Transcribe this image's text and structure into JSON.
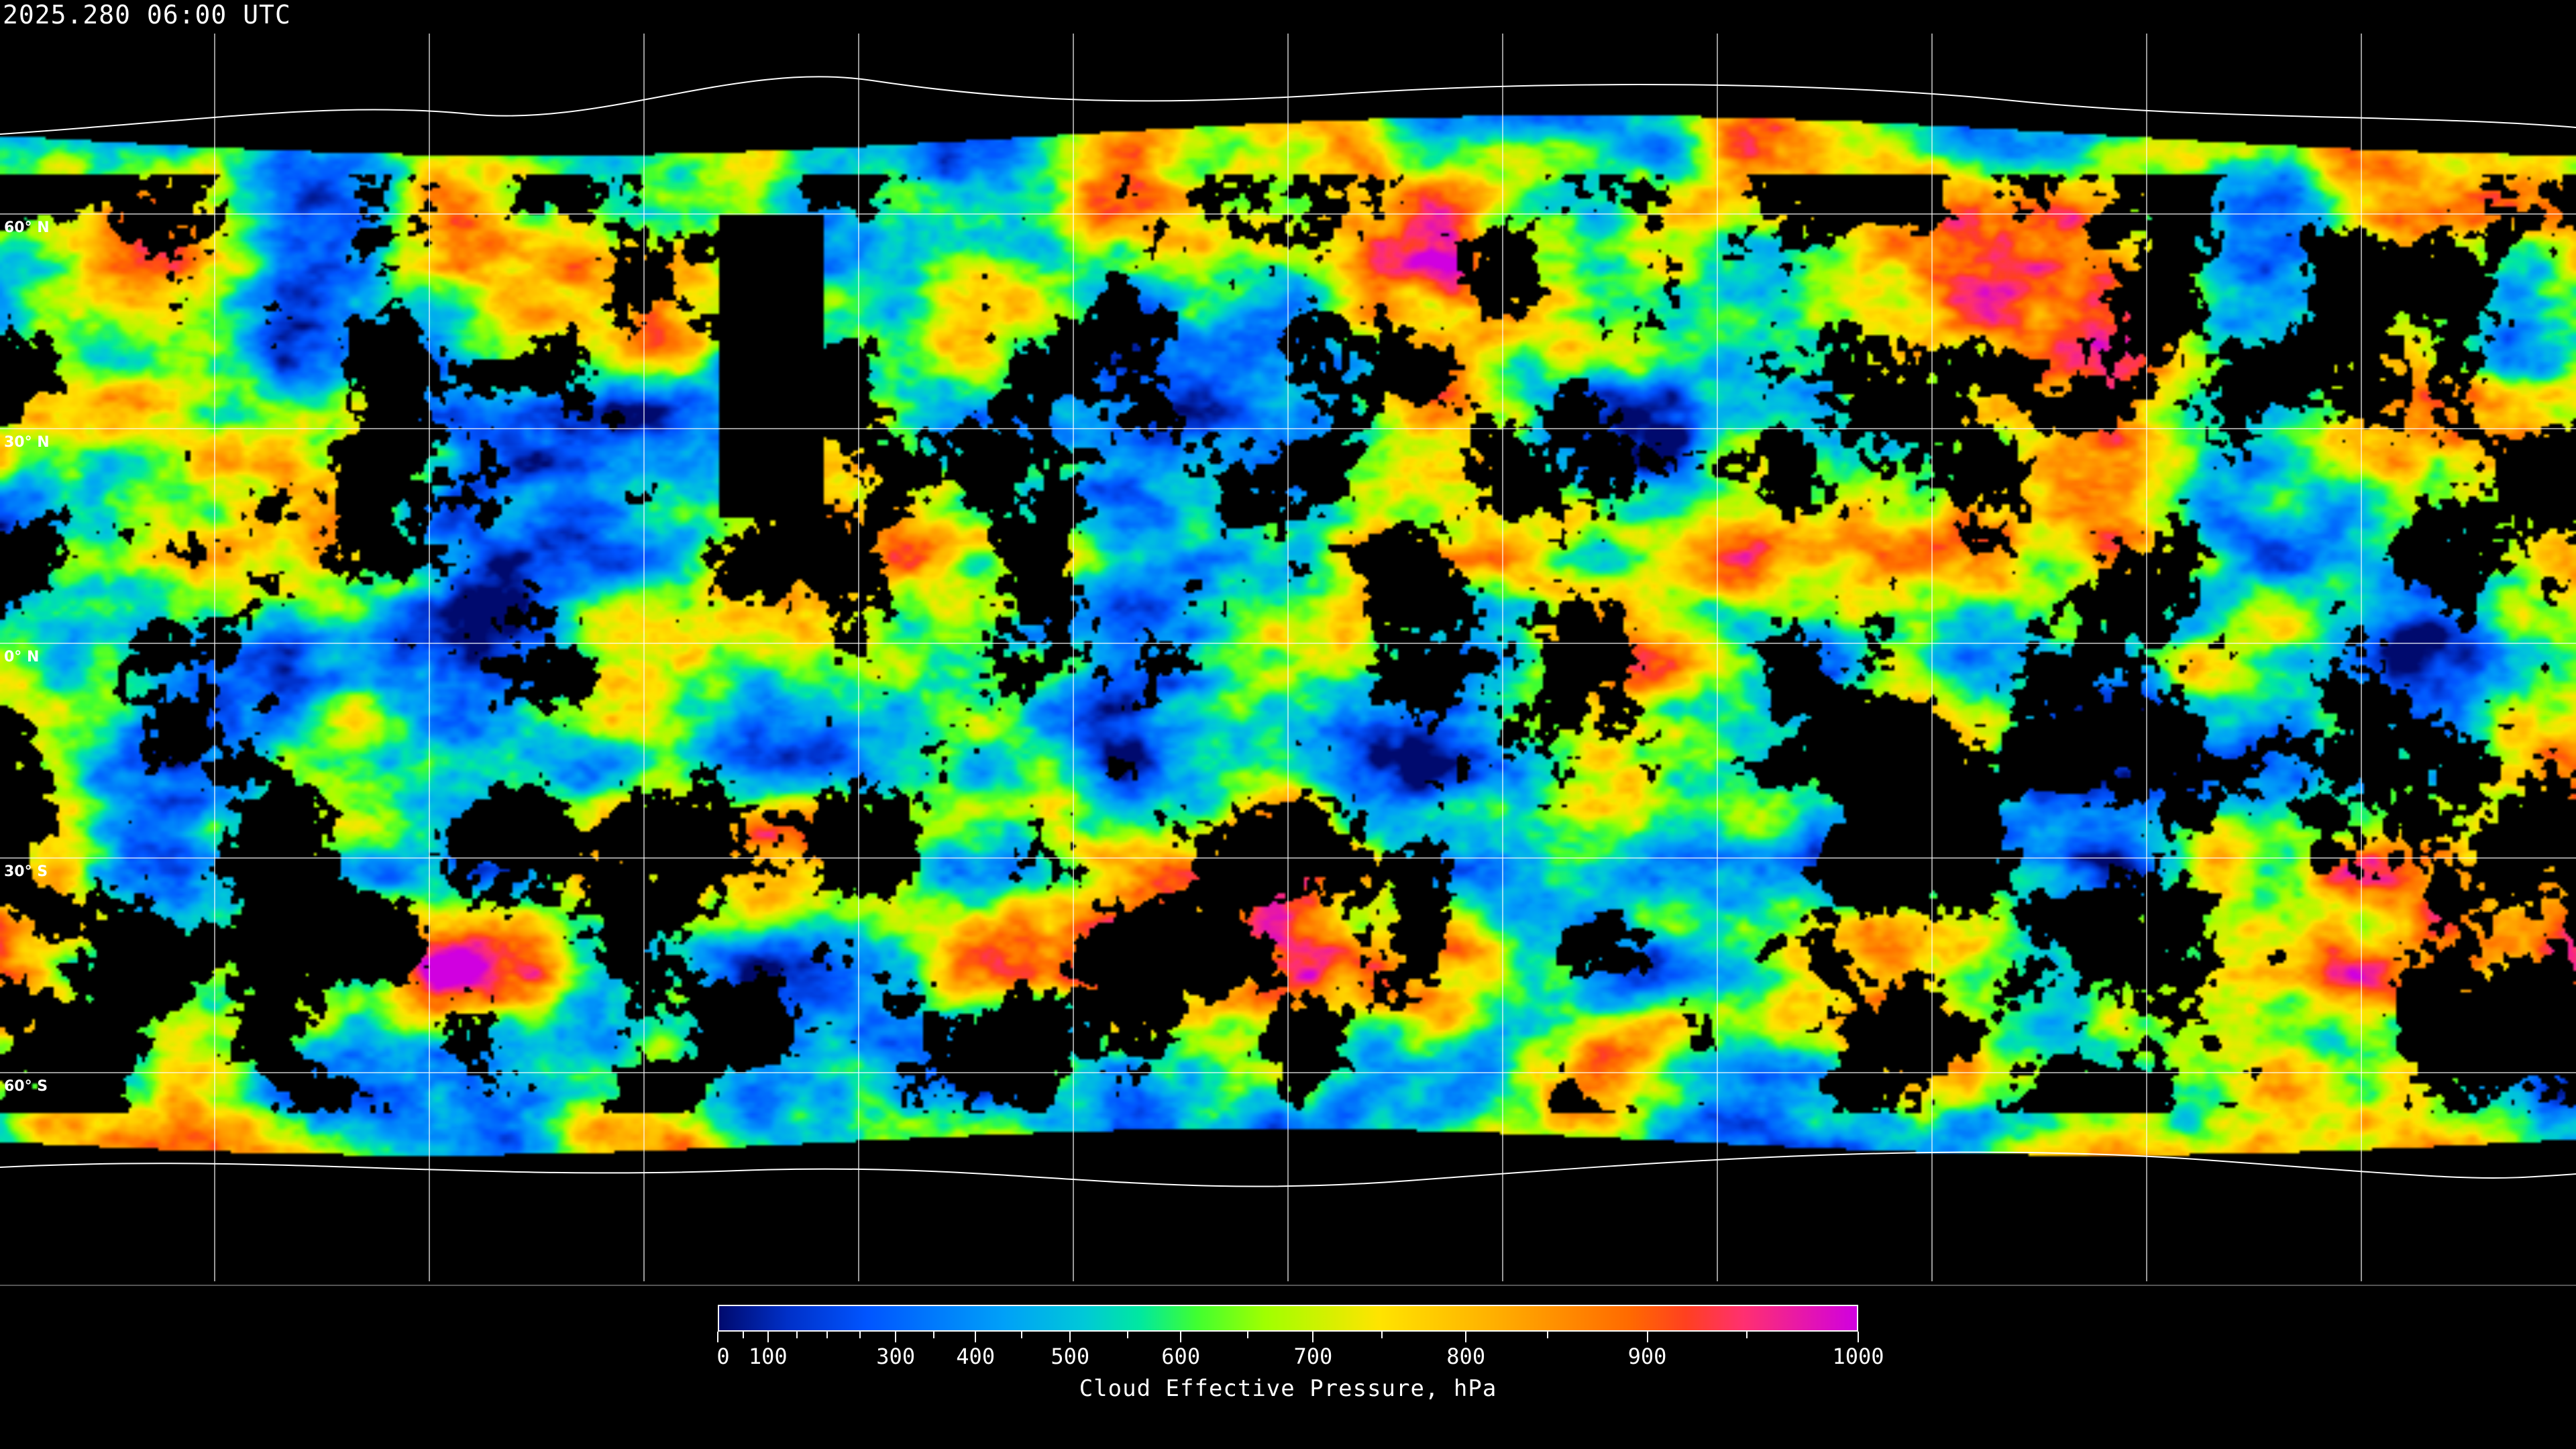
{
  "title": "2025.280 06:00 UTC",
  "latitude_labels": [
    {
      "text": "60° N",
      "lat": 60
    },
    {
      "text": "30° N",
      "lat": 30
    },
    {
      "text": "0° N",
      "lat": 0
    },
    {
      "text": "30° S",
      "lat": -30
    },
    {
      "text": "60° S",
      "lat": -60
    }
  ],
  "graticule_spacing_deg": 30,
  "colorbar": {
    "label": "Cloud Effective Pressure, hPa",
    "range": [
      0,
      1000
    ],
    "tick_labels": [
      "0",
      "100",
      "300",
      "400",
      "500",
      "600",
      "700",
      "800",
      "900",
      "1000"
    ],
    "colormap": [
      "#000a6e",
      "#0030c8",
      "#0055ff",
      "#00a0f8",
      "#00c8d8",
      "#00e8a0",
      "#40ff30",
      "#a0ff00",
      "#ffe400",
      "#ffb000",
      "#ff6a00",
      "#ff4020",
      "#ff3070",
      "#d000e0"
    ]
  }
}
